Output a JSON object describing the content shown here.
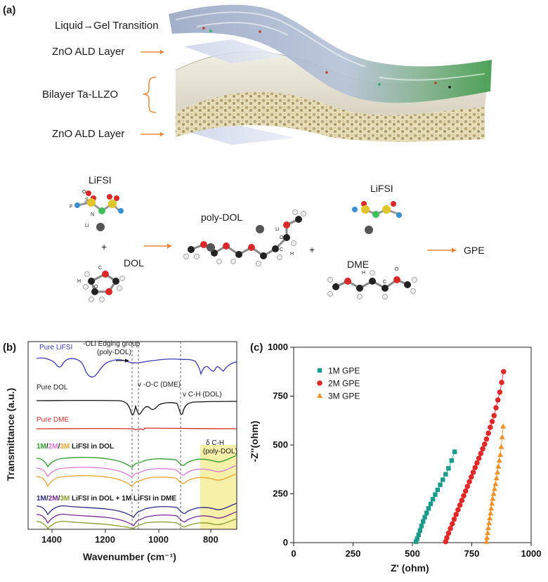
{
  "panel_a": {
    "label": "(a)",
    "layers": {
      "liquid_gel": "Liquid→Gel Transition",
      "zno_top": "ZnO ALD Layer",
      "bilayer": "Bilayer Ta-LLZO",
      "zno_bottom": "ZnO ALD Layer"
    },
    "reaction": {
      "lifsi_1": "LiFSI",
      "dol": "DOL",
      "poly_dol": "poly-DOL",
      "lifsi_2": "LiFSI",
      "dme": "DME",
      "gpe": "GPE",
      "plus": "+",
      "atoms": {
        "O": "O",
        "S": "S",
        "F": "F",
        "N": "N",
        "Li": "Li",
        "C": "C",
        "H": "H"
      }
    }
  },
  "panel_b": {
    "label": "(b)",
    "xlabel": "Wavenumber (cm⁻¹)",
    "ylabel": "Transmittance (a.u.)",
    "xticks": [
      "1400",
      "1200",
      "1000",
      "800"
    ],
    "annotations": {
      "pure_lifsi": "Pure LiFSI",
      "edging": "-OLi Edging group",
      "edging2": "(poly-DOL)",
      "pure_dol": "Pure DOL",
      "voc": "v -O-C (DME)",
      "vch": "v C-H (DOL)",
      "pure_dme": "Pure DME",
      "lifsi_dol_1m": "1M",
      "lifsi_dol_2m": "2M",
      "lifsi_dol_3m": "3M",
      "lifsi_dol_rest": " LiFSI in DOL",
      "mix_1m": "1M",
      "mix_2m": "2M",
      "mix_3m": "3M",
      "mix_rest": " LiFSI in DOL + 1M LiFSI in DME",
      "delta_ch": "δ C-H",
      "delta_ch2": "(poly-DOL)"
    },
    "colors": {
      "lifsi": "#3b3bb5",
      "dol": "#111111",
      "dme": "#d32f2f",
      "green": "#2e9d2e",
      "pink": "#e07ad8",
      "orange": "#e8a530",
      "navy": "#2a2a8a",
      "purple": "#7a2a9a",
      "olive": "#8a9a2a",
      "highlight": "#f7f0a8"
    }
  },
  "chart_data": {
    "type": "scatter",
    "title": "",
    "xlabel": "Z' (ohm)",
    "ylabel": "-Z''(ohm)",
    "xlim": [
      0,
      1000
    ],
    "ylim": [
      0,
      1000
    ],
    "xticks": [
      0,
      250,
      500,
      750,
      1000
    ],
    "yticks": [
      0,
      250,
      500,
      750,
      1000
    ],
    "panel_label": "(c)",
    "legend_position": "top-left",
    "series": [
      {
        "name": "1M GPE",
        "color": "#1a9a8a",
        "marker": "square",
        "x": [
          515,
          520,
          526,
          532,
          538,
          545,
          552,
          560,
          568,
          577,
          586,
          596,
          606,
          617,
          628,
          640,
          652,
          665,
          678
        ],
        "y": [
          5,
          20,
          40,
          62,
          85,
          108,
          130,
          152,
          175,
          198,
          222,
          246,
          270,
          296,
          322,
          350,
          380,
          420,
          465
        ]
      },
      {
        "name": "2M GPE",
        "color": "#e02a2a",
        "marker": "circle",
        "x": [
          640,
          645,
          652,
          660,
          668,
          676,
          684,
          692,
          700,
          708,
          716,
          724,
          732,
          740,
          748,
          756,
          764,
          772,
          780,
          788,
          796,
          804,
          812,
          820,
          828,
          836,
          844,
          852,
          860,
          868,
          876,
          884
        ],
        "y": [
          5,
          25,
          48,
          72,
          96,
          120,
          144,
          168,
          192,
          216,
          240,
          264,
          288,
          312,
          336,
          360,
          384,
          408,
          432,
          456,
          480,
          504,
          530,
          560,
          590,
          620,
          650,
          690,
          730,
          770,
          820,
          875
        ]
      },
      {
        "name": "3M GPE",
        "color": "#f0902a",
        "marker": "triangle",
        "x": [
          812,
          814,
          817,
          820,
          823,
          826,
          829,
          832,
          835,
          838,
          842,
          846,
          850,
          854,
          858,
          862,
          866,
          870,
          874,
          878,
          882
        ],
        "y": [
          5,
          25,
          50,
          75,
          100,
          125,
          150,
          175,
          200,
          225,
          250,
          275,
          300,
          330,
          360,
          390,
          420,
          450,
          490,
          540,
          595
        ]
      }
    ]
  }
}
